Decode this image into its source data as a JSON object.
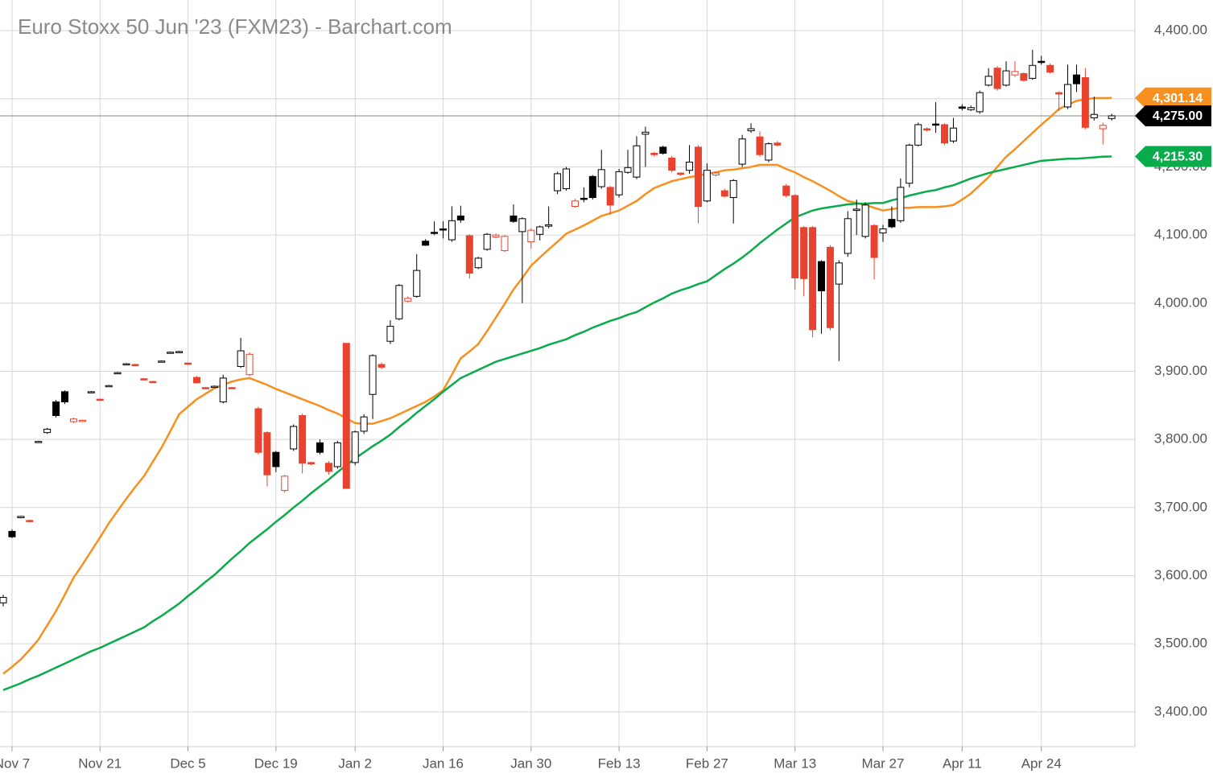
{
  "chart_data": {
    "type": "candlestick",
    "title": "Euro Stoxx 50 Jun '23 (FXM23) - Barchart.com",
    "categories": [
      null,
      "Nov 7",
      null,
      null,
      null,
      null,
      null,
      null,
      null,
      null,
      null,
      "Nov 21",
      null,
      null,
      null,
      null,
      null,
      null,
      null,
      null,
      null,
      "Dec 5",
      null,
      null,
      null,
      null,
      null,
      null,
      null,
      null,
      null,
      "Dec 19",
      null,
      null,
      null,
      null,
      null,
      null,
      null,
      null,
      "Jan 2",
      null,
      null,
      null,
      null,
      null,
      null,
      null,
      null,
      null,
      "Jan 16",
      null,
      null,
      null,
      null,
      null,
      null,
      null,
      null,
      null,
      "Jan 30",
      null,
      null,
      null,
      null,
      null,
      null,
      null,
      null,
      null,
      "Feb 13",
      null,
      null,
      null,
      null,
      null,
      null,
      null,
      null,
      null,
      "Feb 27",
      null,
      null,
      null,
      null,
      null,
      null,
      null,
      null,
      null,
      "Mar 13",
      null,
      null,
      null,
      null,
      null,
      null,
      null,
      null,
      null,
      "Mar 27",
      null,
      null,
      null,
      null,
      null,
      null,
      null,
      null,
      "Apr 11",
      null,
      null,
      null,
      null,
      null,
      null,
      null,
      null,
      "Apr 24",
      null,
      null,
      null,
      null,
      null,
      null,
      null,
      null
    ],
    "open": [
      3560,
      3665,
      3685,
      3681,
      3796,
      3810,
      3855,
      3870,
      3826,
      3827,
      3869,
      3859,
      3878,
      3897,
      3910,
      3910,
      3889,
      3885,
      3914,
      3927,
      3928,
      3912,
      3891,
      3876,
      3877,
      3855,
      3876,
      3907,
      3895,
      3845,
      3810,
      3781,
      3725,
      3786,
      3835,
      3766,
      3795,
      3765,
      3760,
      3941,
      3766,
      3812,
      3866,
      3910,
      3944,
      3977,
      4003,
      4010,
      4091,
      4104,
      4109,
      4093,
      4128,
      4099,
      4052,
      4079,
      4097,
      4077,
      4128,
      4105,
      4090,
      4101,
      4113,
      4165,
      4168,
      4142,
      4154,
      4186,
      4171,
      4170,
      4159,
      4192,
      4185,
      4248,
      4220,
      4229,
      4213,
      4191,
      4195,
      4229,
      4150,
      4188,
      4165,
      4155,
      4204,
      4253,
      4244,
      4210,
      4235,
      4172,
      4158,
      4111,
      4111,
      4061,
      4082,
      4028,
      4073,
      4136,
      4098,
      4114,
      4103,
      4123,
      4121,
      4176,
      4232,
      4256,
      4263,
      4262,
      4238,
      4288,
      4284,
      4281,
      4320,
      4345,
      4320,
      4335,
      4337,
      4330,
      4355,
      4349,
      4309,
      4288,
      4335,
      4331,
      4272,
      4256,
      4271
    ],
    "high": [
      3572,
      3668,
      3688,
      3682,
      3798,
      3817,
      3858,
      3872,
      3832,
      3829,
      3871,
      3860,
      3880,
      3899,
      3912,
      3911,
      3890,
      3886,
      3916,
      3929,
      3930,
      3913,
      3893,
      3877,
      3879,
      3895,
      3877,
      3949,
      3928,
      3848,
      3812,
      3783,
      3748,
      3822,
      3838,
      3767,
      3800,
      3768,
      3798,
      3941,
      3813,
      3837,
      3925,
      3913,
      3975,
      4028,
      4010,
      4072,
      4094,
      4120,
      4120,
      4142,
      4143,
      4101,
      4068,
      4103,
      4102,
      4100,
      4145,
      4126,
      4110,
      4114,
      4142,
      4193,
      4200,
      4153,
      4170,
      4188,
      4225,
      4172,
      4197,
      4225,
      4245,
      4259,
      4222,
      4231,
      4216,
      4192,
      4232,
      4232,
      4205,
      4193,
      4168,
      4182,
      4247,
      4264,
      4252,
      4236,
      4238,
      4175,
      4160,
      4113,
      4113,
      4063,
      4085,
      4063,
      4135,
      4152,
      4148,
      4116,
      4115,
      4142,
      4183,
      4234,
      4265,
      4258,
      4295,
      4264,
      4272,
      4292,
      4290,
      4312,
      4345,
      4348,
      4355,
      4355,
      4339,
      4372,
      4363,
      4352,
      4311,
      4350,
      4350,
      4345,
      4303,
      4265,
      4278
    ],
    "low": [
      3555,
      3655,
      3684,
      3679,
      3795,
      3808,
      3832,
      3852,
      3824,
      3826,
      3868,
      3857,
      3877,
      3896,
      3909,
      3908,
      3887,
      3883,
      3913,
      3926,
      3927,
      3910,
      3882,
      3874,
      3876,
      3853,
      3874,
      3905,
      3893,
      3778,
      3731,
      3752,
      3722,
      3783,
      3750,
      3762,
      3778,
      3748,
      3757,
      3728,
      3762,
      3808,
      3830,
      3903,
      3940,
      3975,
      4001,
      4008,
      4084,
      4100,
      4095,
      4090,
      4118,
      4036,
      4050,
      4077,
      4095,
      4075,
      4118,
      4000,
      4080,
      4092,
      4110,
      4160,
      4165,
      4140,
      4148,
      4152,
      4168,
      4130,
      4155,
      4190,
      4182,
      4200,
      4215,
      4218,
      4192,
      4187,
      4190,
      4117,
      4148,
      4186,
      4155,
      4117,
      4200,
      4250,
      4215,
      4207,
      4230,
      4155,
      4020,
      4010,
      3950,
      3955,
      3960,
      3915,
      4068,
      4100,
      4095,
      4035,
      4090,
      4110,
      4118,
      4170,
      4230,
      4252,
      4250,
      4232,
      4235,
      4283,
      4282,
      4278,
      4318,
      4312,
      4318,
      4332,
      4325,
      4328,
      4350,
      4337,
      4282,
      4285,
      4310,
      4255,
      4268,
      4233,
      4268
    ],
    "close": [
      3568,
      3657,
      3687,
      3680,
      3797,
      3815,
      3835,
      3855,
      3830,
      3828,
      3870,
      3858,
      3879,
      3898,
      3911,
      3909,
      3888,
      3884,
      3915,
      3928,
      3929,
      3911,
      3883,
      3875,
      3878,
      3890,
      3875,
      3930,
      3925,
      3781,
      3748,
      3760,
      3746,
      3819,
      3765,
      3764,
      3781,
      3753,
      3795,
      3728,
      3811,
      3833,
      3923,
      3906,
      3966,
      4026,
      4007,
      4048,
      4085,
      4103,
      4108,
      4121,
      4122,
      4044,
      4066,
      4101,
      4100,
      4098,
      4120,
      4124,
      4107,
      4112,
      4115,
      4190,
      4197,
      4150,
      4153,
      4155,
      4196,
      4144,
      4193,
      4199,
      4231,
      4251,
      4218,
      4220,
      4195,
      4189,
      4207,
      4142,
      4195,
      4191,
      4157,
      4180,
      4241,
      4256,
      4218,
      4234,
      4232,
      4158,
      4037,
      4036,
      3961,
      4018,
      3964,
      4059,
      4124,
      4138,
      4144,
      4067,
      4109,
      4112,
      4170,
      4232,
      4262,
      4254,
      4262,
      4235,
      4257,
      4286,
      4287,
      4309,
      4333,
      4315,
      4341,
      4340,
      4327,
      4349,
      4354,
      4339,
      4307,
      4321,
      4322,
      4258,
      4277,
      4261,
      4275
    ],
    "up_color": "#000000",
    "down_color": "#e8432e",
    "series": [
      {
        "color": "#f7901e",
        "values": [
          3456,
          3466,
          3477,
          3491,
          3506,
          3527,
          3548,
          3572,
          3597,
          3616,
          3636,
          3656,
          3677,
          3695,
          3713,
          3730,
          3746,
          3767,
          3788,
          3812,
          3837,
          3848,
          3859,
          3867,
          3875,
          3880,
          3885,
          3888,
          3890,
          3885,
          3880,
          3874,
          3869,
          3864,
          3859,
          3854,
          3849,
          3843,
          3838,
          3831,
          3824,
          3823,
          3823,
          3827,
          3831,
          3837,
          3843,
          3849,
          3855,
          3863,
          3872,
          3895,
          3919,
          3929,
          3940,
          3959,
          3979,
          3999,
          4020,
          4037,
          4055,
          4067,
          4079,
          4090,
          4102,
          4108,
          4114,
          4121,
          4128,
          4132,
          4136,
          4143,
          4150,
          4160,
          4169,
          4174,
          4179,
          4182,
          4185,
          4187,
          4190,
          4192,
          4195,
          4196,
          4198,
          4200,
          4203,
          4203,
          4203,
          4197,
          4192,
          4185,
          4179,
          4172,
          4165,
          4157,
          4150,
          4147,
          4144,
          4140,
          4136,
          4138,
          4140,
          4140,
          4141,
          4141,
          4141,
          4142,
          4144,
          4152,
          4161,
          4173,
          4185,
          4200,
          4215,
          4226,
          4238,
          4250,
          4262,
          4273,
          4285,
          4291,
          4297,
          4299,
          4301,
          4301,
          4301.14
        ]
      },
      {
        "color": "#0aab4b",
        "values": [
          3432,
          3437,
          3442,
          3448,
          3453,
          3459,
          3465,
          3471,
          3477,
          3483,
          3489,
          3494,
          3500,
          3506,
          3512,
          3518,
          3524,
          3533,
          3541,
          3550,
          3559,
          3570,
          3580,
          3591,
          3601,
          3613,
          3625,
          3636,
          3648,
          3658,
          3668,
          3679,
          3689,
          3700,
          3710,
          3721,
          3731,
          3741,
          3752,
          3762,
          3772,
          3781,
          3790,
          3798,
          3807,
          3818,
          3828,
          3839,
          3849,
          3859,
          3870,
          3880,
          3890,
          3896,
          3902,
          3908,
          3914,
          3918,
          3922,
          3926,
          3930,
          3934,
          3939,
          3943,
          3947,
          3953,
          3958,
          3964,
          3969,
          3974,
          3978,
          3983,
          3987,
          3994,
          4001,
          4007,
          4014,
          4019,
          4023,
          4028,
          4032,
          4041,
          4050,
          4058,
          4067,
          4077,
          4088,
          4098,
          4108,
          4117,
          4126,
          4131,
          4136,
          4139,
          4141,
          4143,
          4145,
          4146,
          4146,
          4147,
          4147,
          4151,
          4154,
          4158,
          4161,
          4164,
          4166,
          4170,
          4173,
          4178,
          4183,
          4187,
          4191,
          4194,
          4197,
          4200,
          4203,
          4206,
          4209,
          4210,
          4211,
          4212,
          4212,
          4213,
          4214,
          4215,
          4215.3
        ]
      }
    ],
    "price_labels": [
      {
        "value": 4301.14,
        "label": "4,301.14",
        "color": "#f7901e"
      },
      {
        "value": 4275,
        "label": "4,275.00",
        "color": "#000000"
      },
      {
        "value": 4215.3,
        "label": "4,215.30",
        "color": "#0aab4b"
      }
    ],
    "ylim": [
      3349,
      4445
    ],
    "yticks": [
      {
        "value": 3400,
        "label": "3,400.00"
      },
      {
        "value": 3500,
        "label": "3,500.00"
      },
      {
        "value": 3600,
        "label": "3,600.00"
      },
      {
        "value": 3700,
        "label": "3,700.00"
      },
      {
        "value": 3800,
        "label": "3,800.00"
      },
      {
        "value": 3900,
        "label": "3,900.00"
      },
      {
        "value": 4000,
        "label": "4,000.00"
      },
      {
        "value": 4100,
        "label": "4,100.00"
      },
      {
        "value": 4200,
        "label": "4,200.00"
      },
      {
        "value": 4300,
        "label": "4,300.00"
      },
      {
        "value": 4400,
        "label": "4,400.00"
      }
    ],
    "grid": true
  }
}
